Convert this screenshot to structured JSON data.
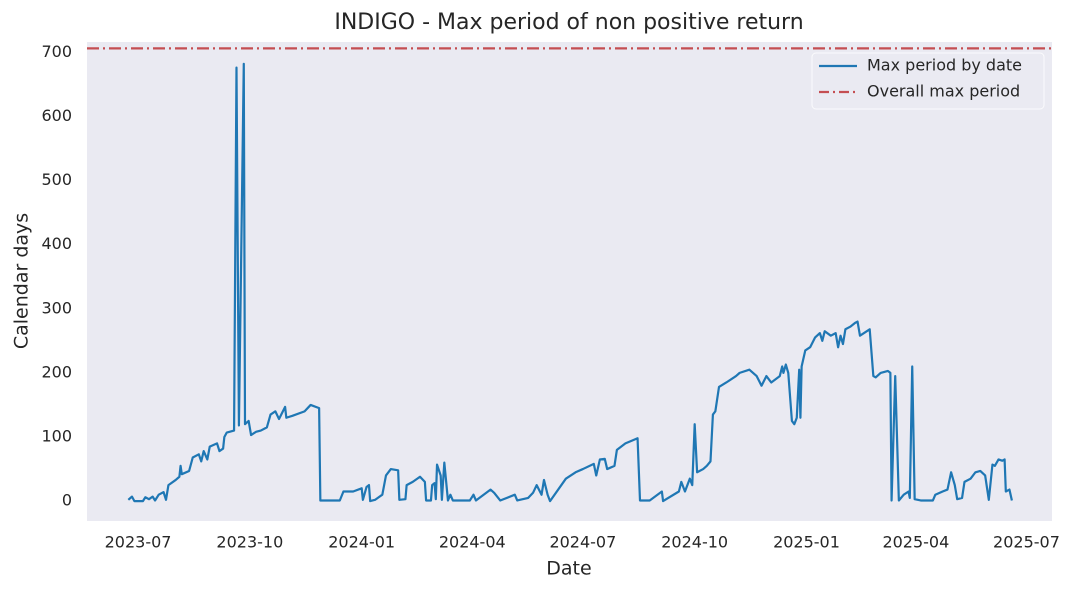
{
  "chart_data": {
    "type": "line",
    "title": "INDIGO - Max period of non positive return",
    "xlabel": "Date",
    "ylabel": "Calendar days",
    "xlim": [
      "2023-05-20",
      "2025-07-22"
    ],
    "xticks": [
      {
        "value": "2023-07-01",
        "label": "2023-07"
      },
      {
        "value": "2023-10-01",
        "label": "2023-10"
      },
      {
        "value": "2024-01-01",
        "label": "2024-01"
      },
      {
        "value": "2024-04-01",
        "label": "2024-04"
      },
      {
        "value": "2024-07-01",
        "label": "2024-07"
      },
      {
        "value": "2024-10-01",
        "label": "2024-10"
      },
      {
        "value": "2025-01-01",
        "label": "2025-01"
      },
      {
        "value": "2025-04-01",
        "label": "2025-04"
      },
      {
        "value": "2025-07-01",
        "label": "2025-07"
      }
    ],
    "ylim": [
      -31,
      716
    ],
    "yticks": [
      0,
      100,
      200,
      300,
      400,
      500,
      600,
      700
    ],
    "grid": false,
    "legend": "upper right",
    "series": [
      {
        "name": "Max period by date",
        "color": "#1f77b4",
        "x": [
          "2023-06-23",
          "2023-06-26",
          "2023-06-28",
          "2023-07-05",
          "2023-07-07",
          "2023-07-10",
          "2023-07-13",
          "2023-07-15",
          "2023-07-18",
          "2023-07-22",
          "2023-07-24",
          "2023-07-26",
          "2023-08-01",
          "2023-08-04",
          "2023-08-05",
          "2023-08-06",
          "2023-08-12",
          "2023-08-15",
          "2023-08-20",
          "2023-08-22",
          "2023-08-24",
          "2023-08-27",
          "2023-08-29",
          "2023-09-04",
          "2023-09-06",
          "2023-09-09",
          "2023-09-10",
          "2023-09-12",
          "2023-09-18",
          "2023-09-20",
          "2023-09-22",
          "2023-09-26",
          "2023-09-27",
          "2023-09-30",
          "2023-10-02",
          "2023-10-06",
          "2023-10-10",
          "2023-10-15",
          "2023-10-18",
          "2023-10-22",
          "2023-10-25",
          "2023-10-30",
          "2023-10-31",
          "2023-11-05",
          "2023-11-15",
          "2023-11-20",
          "2023-11-27",
          "2023-11-28",
          "2023-12-14",
          "2023-12-17",
          "2023-12-25",
          "2024-01-01",
          "2024-01-02",
          "2024-01-05",
          "2024-01-07",
          "2024-01-08",
          "2024-01-12",
          "2024-01-18",
          "2024-01-21",
          "2024-01-25",
          "2024-01-31",
          "2024-02-01",
          "2024-02-06",
          "2024-02-07",
          "2024-02-12",
          "2024-02-18",
          "2024-02-22",
          "2024-02-23",
          "2024-02-27",
          "2024-02-28",
          "2024-03-01",
          "2024-03-02",
          "2024-03-03",
          "2024-03-06",
          "2024-03-07",
          "2024-03-09",
          "2024-03-12",
          "2024-03-14",
          "2024-03-16",
          "2024-03-30",
          "2024-04-02",
          "2024-04-04",
          "2024-04-16",
          "2024-04-19",
          "2024-04-24",
          "2024-05-06",
          "2024-05-08",
          "2024-05-17",
          "2024-05-21",
          "2024-05-24",
          "2024-05-28",
          "2024-05-30",
          "2024-06-02",
          "2024-06-04",
          "2024-06-17",
          "2024-06-25",
          "2024-07-01",
          "2024-07-10",
          "2024-07-12",
          "2024-07-15",
          "2024-07-19",
          "2024-07-21",
          "2024-07-27",
          "2024-07-29",
          "2024-08-05",
          "2024-08-15",
          "2024-08-17",
          "2024-08-25",
          "2024-09-04",
          "2024-09-05",
          "2024-09-18",
          "2024-09-20",
          "2024-09-23",
          "2024-09-27",
          "2024-09-29",
          "2024-10-01",
          "2024-10-03",
          "2024-10-08",
          "2024-10-11",
          "2024-10-14",
          "2024-10-16",
          "2024-10-18",
          "2024-10-21",
          "2024-10-27",
          "2024-11-04",
          "2024-11-07",
          "2024-11-15",
          "2024-11-21",
          "2024-11-25",
          "2024-11-29",
          "2024-12-03",
          "2024-12-10",
          "2024-12-12",
          "2024-12-13",
          "2024-12-15",
          "2024-12-17",
          "2024-12-20",
          "2024-12-22",
          "2024-12-24",
          "2024-12-26",
          "2024-12-27",
          "2024-12-28",
          "2024-12-31",
          "2025-01-04",
          "2025-01-08",
          "2025-01-12",
          "2025-01-14",
          "2025-01-16",
          "2025-01-21",
          "2025-01-25",
          "2025-01-27",
          "2025-01-29",
          "2025-01-31",
          "2025-02-02",
          "2025-02-06",
          "2025-02-10",
          "2025-02-12",
          "2025-02-14",
          "2025-02-22",
          "2025-02-25",
          "2025-02-27",
          "2025-03-03",
          "2025-03-09",
          "2025-03-11",
          "2025-03-12",
          "2025-03-15",
          "2025-03-18",
          "2025-03-22",
          "2025-03-26",
          "2025-03-27",
          "2025-03-29",
          "2025-03-31",
          "2025-04-05",
          "2025-04-15",
          "2025-04-17",
          "2025-04-23",
          "2025-04-27",
          "2025-04-30",
          "2025-05-03",
          "2025-05-05",
          "2025-05-09",
          "2025-05-11",
          "2025-05-16",
          "2025-05-20",
          "2025-05-24",
          "2025-05-28",
          "2025-05-31",
          "2025-06-03",
          "2025-06-05",
          "2025-06-08",
          "2025-06-11",
          "2025-06-13",
          "2025-06-14",
          "2025-06-17",
          "2025-06-19"
        ],
        "values": [
          2,
          7,
          0,
          0,
          6,
          3,
          7,
          1,
          10,
          14,
          2,
          25,
          33,
          38,
          55,
          42,
          47,
          68,
          73,
          62,
          78,
          65,
          85,
          90,
          78,
          82,
          100,
          107,
          110,
          676,
          118,
          682,
          120,
          125,
          103,
          108,
          110,
          115,
          135,
          140,
          128,
          147,
          130,
          133,
          140,
          150,
          145,
          1,
          1,
          15,
          15,
          20,
          2,
          22,
          25,
          0,
          2,
          10,
          40,
          50,
          48,
          2,
          3,
          25,
          30,
          38,
          30,
          1,
          1,
          25,
          28,
          3,
          57,
          40,
          2,
          60,
          1,
          10,
          1,
          1,
          10,
          1,
          18,
          13,
          1,
          10,
          1,
          5,
          13,
          25,
          10,
          33,
          10,
          0,
          35,
          45,
          50,
          58,
          40,
          65,
          66,
          50,
          55,
          80,
          90,
          98,
          1,
          1,
          15,
          0,
          15,
          30,
          15,
          35,
          25,
          120,
          45,
          50,
          55,
          62,
          135,
          140,
          178,
          185,
          195,
          200,
          205,
          195,
          180,
          195,
          185,
          195,
          210,
          200,
          213,
          200,
          125,
          120,
          130,
          205,
          130,
          210,
          235,
          240,
          255,
          262,
          250,
          265,
          258,
          262,
          240,
          258,
          245,
          268,
          272,
          278,
          280,
          258,
          268,
          195,
          193,
          200,
          203,
          200,
          1,
          195,
          1,
          10,
          15,
          5,
          210,
          3,
          1,
          1,
          10,
          15,
          18,
          45,
          25,
          3,
          5,
          30,
          35,
          45,
          47,
          40,
          2,
          57,
          55,
          65,
          63,
          65,
          15,
          18,
          1
        ]
      }
    ],
    "hlines": [
      {
        "name": "Overall max period",
        "color": "#c44e52",
        "value": 706
      }
    ]
  }
}
